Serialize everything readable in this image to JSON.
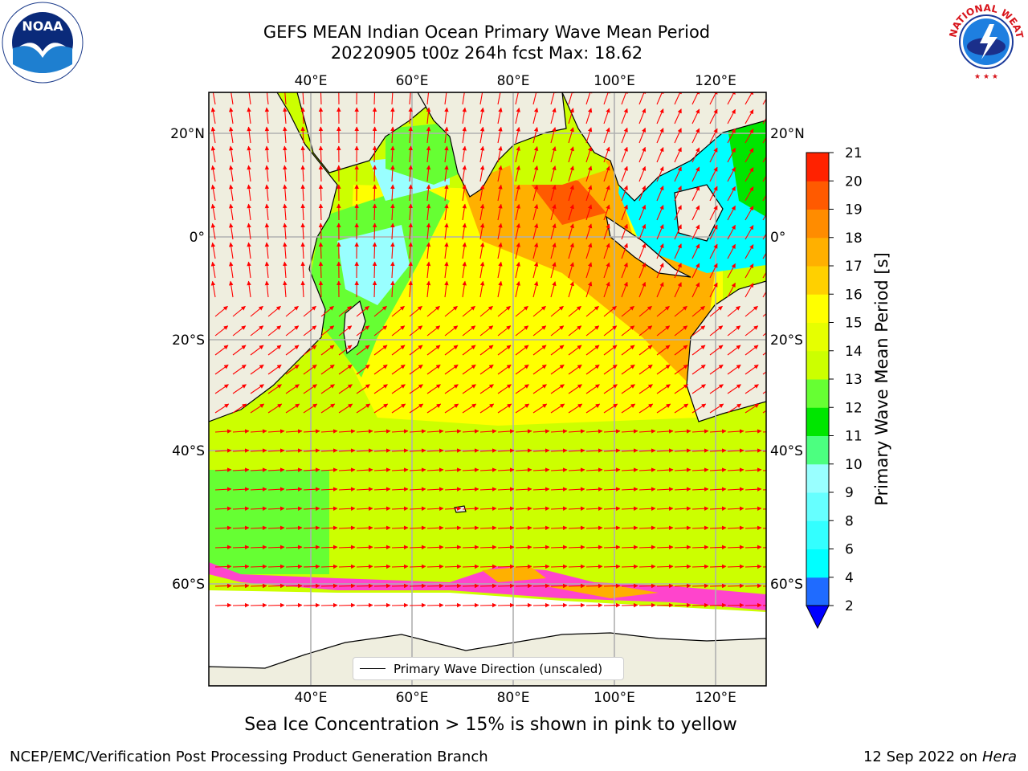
{
  "header": {
    "title_line1": "GEFS MEAN Indian Ocean Primary Wave Mean Period",
    "title_line2": "20220905 t00z 264h fcst   Max: 18.62"
  },
  "map": {
    "lon_labels_top": [
      "40°E",
      "60°E",
      "80°E",
      "100°E",
      "120°E"
    ],
    "lon_labels_bottom": [
      "40°E",
      "60°E",
      "80°E",
      "100°E",
      "120°E"
    ],
    "lat_labels_left": [
      "20°N",
      "0°",
      "20°S",
      "40°S",
      "60°S"
    ],
    "lat_labels_right": [
      "20°N",
      "0°",
      "20°S",
      "40°S",
      "60°S"
    ],
    "legend_label": "Primary Wave Direction (unscaled)",
    "arrow_color": "#ff0000",
    "land_color": "#efeedf",
    "coast_color": "#000000"
  },
  "colorbar": {
    "label": "Primary Wave Mean Period [s]",
    "ticks": [
      "2",
      "4",
      "6",
      "8",
      "9",
      "10",
      "11",
      "12",
      "13",
      "14",
      "15",
      "16",
      "17",
      "18",
      "19",
      "20",
      "21"
    ],
    "colors": [
      "#1f6bff",
      "#00ffff",
      "#33ffff",
      "#66ffff",
      "#99ffff",
      "#4cff80",
      "#00e600",
      "#66ff33",
      "#ccff00",
      "#e6ff00",
      "#ffff00",
      "#ffd000",
      "#ffb000",
      "#ff8c00",
      "#ff5a00",
      "#ff2200"
    ],
    "under_color": "#0000ff"
  },
  "logos": {
    "noaa_text": "NOAA",
    "nws_text": "NATIONAL WEATHER SERVICE"
  },
  "caption": "Sea Ice Concentration > 15% is shown in pink to yellow",
  "footer": {
    "left": "NCEP/EMC/Verification Post Processing Product Generation Branch",
    "right_date": "12 Sep 2022 on",
    "right_host": "Hera"
  }
}
